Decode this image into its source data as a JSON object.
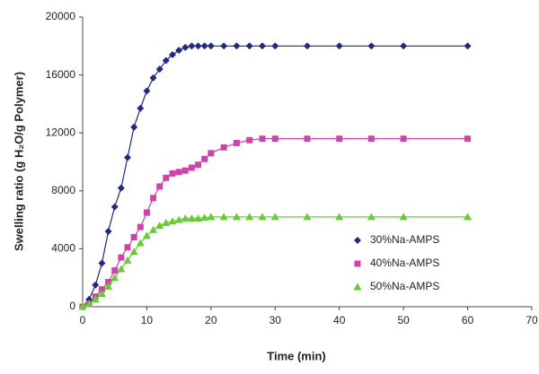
{
  "chart_data": {
    "type": "line",
    "xlabel": "Time (min)",
    "ylabel": "Swelling ratio (g H₂O/g Polymer)",
    "x": [
      0,
      1,
      2,
      3,
      4,
      5,
      6,
      7,
      8,
      9,
      10,
      11,
      12,
      13,
      14,
      15,
      16,
      17,
      18,
      19,
      20,
      22,
      24,
      26,
      28,
      30,
      35,
      40,
      45,
      50,
      60
    ],
    "series": [
      {
        "name": "30%Na-AMPS",
        "color": "#1f2a80",
        "marker": "diamond",
        "values": [
          0,
          500,
          1500,
          3000,
          5200,
          6900,
          8200,
          10300,
          12400,
          13700,
          14900,
          15800,
          16400,
          17000,
          17400,
          17700,
          17900,
          18000,
          18000,
          18000,
          18000,
          18000,
          18000,
          18000,
          18000,
          18000,
          18000,
          18000,
          18000,
          18000,
          18000
        ]
      },
      {
        "name": "40%Na-AMPS",
        "color": "#cc44aa",
        "marker": "square",
        "values": [
          0,
          200,
          700,
          1200,
          1700,
          2500,
          3400,
          4100,
          4800,
          5500,
          6500,
          7500,
          8300,
          8900,
          9200,
          9300,
          9400,
          9600,
          9800,
          10200,
          10600,
          11000,
          11300,
          11500,
          11600,
          11600,
          11600,
          11600,
          11600,
          11600,
          11600
        ]
      },
      {
        "name": "50%Na-AMPS",
        "color": "#66cc33",
        "marker": "triangle",
        "values": [
          0,
          200,
          500,
          900,
          1400,
          2000,
          2600,
          3200,
          3800,
          4400,
          4900,
          5300,
          5600,
          5800,
          5900,
          6000,
          6100,
          6100,
          6100,
          6150,
          6200,
          6200,
          6200,
          6200,
          6200,
          6200,
          6200,
          6200,
          6200,
          6200,
          6200
        ]
      }
    ],
    "xlim": [
      0,
      70
    ],
    "xticks": [
      0,
      10,
      20,
      30,
      40,
      50,
      60,
      70
    ],
    "ylim": [
      0,
      20000
    ],
    "yticks": [
      0,
      4000,
      8000,
      12000,
      16000,
      20000
    ],
    "grid": false,
    "legend": "right"
  }
}
